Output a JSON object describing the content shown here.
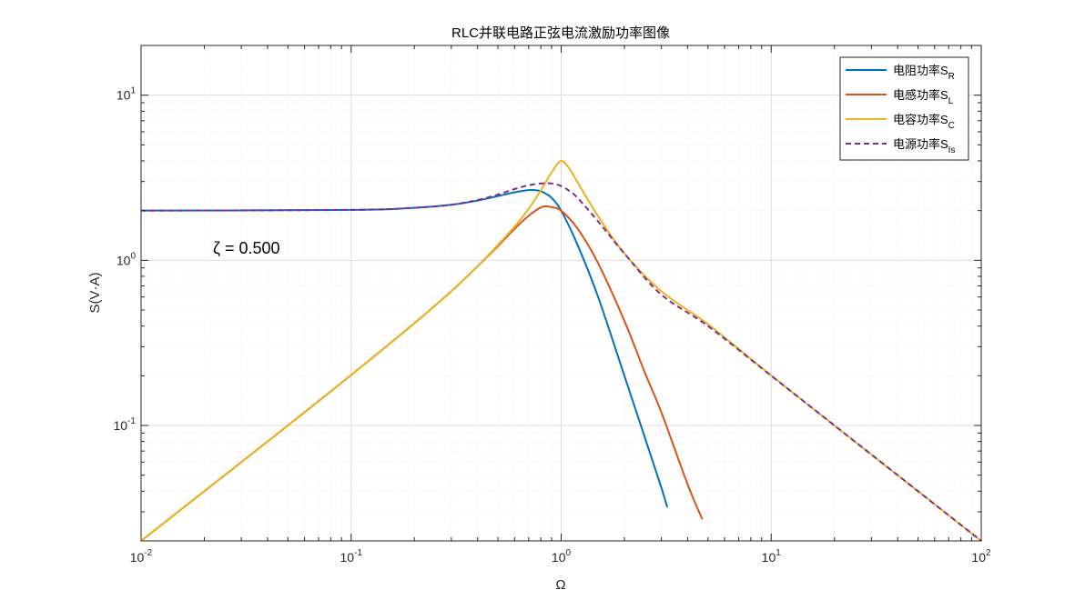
{
  "chart_data": {
    "type": "line",
    "title": "RLC并联电路正弦电流激励功率图像",
    "xlabel": "Ω",
    "ylabel": "S(V·A)",
    "xscale": "log",
    "yscale": "log",
    "xlim": [
      0.01,
      100
    ],
    "ylim": [
      0.02,
      20
    ],
    "grid": true,
    "legend_position": "top-right",
    "x_ticks": [
      {
        "base": "10",
        "exp": "-2",
        "value": 0.01
      },
      {
        "base": "10",
        "exp": "-1",
        "value": 0.1
      },
      {
        "base": "10",
        "exp": "0",
        "value": 1
      },
      {
        "base": "10",
        "exp": "1",
        "value": 10
      },
      {
        "base": "10",
        "exp": "2",
        "value": 100
      }
    ],
    "y_ticks": [
      {
        "base": "10",
        "exp": "-1",
        "value": 0.1
      },
      {
        "base": "10",
        "exp": "0",
        "value": 1
      },
      {
        "base": "10",
        "exp": "1",
        "value": 10
      }
    ],
    "annotation": {
      "text": "ζ = 0.500",
      "x": 0.022,
      "y": 1.1
    },
    "series": [
      {
        "name": "电阻功率S",
        "subscript": "R",
        "color": "#0072BD",
        "style": "solid",
        "x": [
          0.01,
          0.1,
          0.2,
          0.3,
          0.4,
          0.5,
          0.6,
          0.7,
          0.75,
          0.8,
          0.85,
          0.9,
          1,
          1.2,
          1.5,
          2,
          2.5,
          3,
          3.2
        ],
        "y": [
          2.0,
          2.02,
          2.08,
          2.17,
          2.3,
          2.45,
          2.58,
          2.66,
          2.66,
          2.62,
          2.52,
          2.39,
          2.0,
          1.23,
          0.6,
          0.2,
          0.085,
          0.042,
          0.032
        ]
      },
      {
        "name": "电感功率S",
        "subscript": "L",
        "color": "#D95319",
        "style": "solid",
        "x": [
          0.01,
          0.05,
          0.1,
          0.2,
          0.3,
          0.4,
          0.5,
          0.6,
          0.7,
          0.8,
          0.85,
          0.9,
          1,
          1.2,
          1.5,
          2,
          2.5,
          3,
          4,
          4.7
        ],
        "y": [
          0.02,
          0.1,
          0.202,
          0.416,
          0.65,
          0.92,
          1.22,
          1.55,
          1.86,
          2.09,
          2.12,
          2.1,
          2.0,
          1.55,
          0.96,
          0.43,
          0.21,
          0.12,
          0.044,
          0.027
        ]
      },
      {
        "name": "电容功率S",
        "subscript": "C",
        "color": "#EDB120",
        "style": "solid",
        "x": [
          0.01,
          0.05,
          0.1,
          0.2,
          0.3,
          0.4,
          0.5,
          0.6,
          0.7,
          0.8,
          0.9,
          1,
          1.1,
          1.2,
          1.5,
          2,
          3,
          5,
          10,
          20,
          50,
          100
        ],
        "y": [
          0.02,
          0.1,
          0.202,
          0.416,
          0.65,
          0.92,
          1.24,
          1.6,
          2.05,
          2.65,
          3.4,
          4.0,
          3.55,
          2.95,
          1.85,
          1.1,
          0.65,
          0.41,
          0.201,
          0.1,
          0.04,
          0.02
        ]
      },
      {
        "name": "电源功率S",
        "subscript": "Is",
        "color": "#7E2F8E",
        "style": "dashed",
        "x": [
          0.01,
          0.1,
          0.2,
          0.3,
          0.4,
          0.5,
          0.6,
          0.7,
          0.8,
          0.9,
          1,
          1.1,
          1.2,
          1.5,
          2,
          3,
          5,
          10,
          20,
          50,
          100
        ],
        "y": [
          2.0,
          2.02,
          2.08,
          2.17,
          2.32,
          2.5,
          2.7,
          2.85,
          2.92,
          2.92,
          2.82,
          2.62,
          2.38,
          1.72,
          1.1,
          0.62,
          0.4,
          0.2,
          0.1,
          0.04,
          0.02
        ]
      }
    ]
  }
}
